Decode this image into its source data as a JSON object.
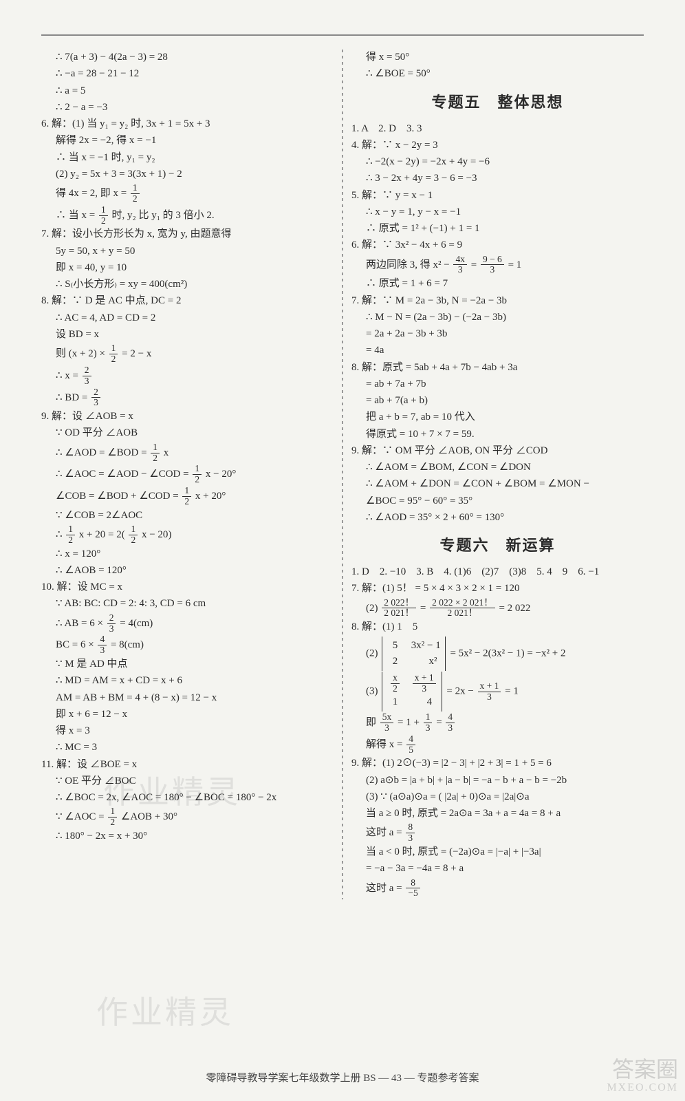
{
  "left": {
    "l1": "∴ 7(a + 3) − 4(2a − 3) = 28",
    "l2": "∴ −a = 28 − 21 − 12",
    "l3": "∴ a = 5",
    "l4": "∴ 2 − a = −3",
    "q6a": "6. 解：(1) 当 y₁ = y₂ 时, 3x + 1 = 5x + 3",
    "q6b": "解得 2x = −2, 得 x = −1",
    "q6c": "∴ 当 x = −1 时, y₁ = y₂",
    "q6d": "(2) y₂ = 5x + 3 = 3(3x + 1) − 2",
    "q6e_pre": "得 4x = 2, 即 x = ",
    "q6f_pre": "∴ 当 x = ",
    "q6f_post": " 时, y₂ 比 y₁ 的 3 倍小 2.",
    "q7a": "7. 解：设小长方形长为 x, 宽为 y, 由题意得",
    "q7b": "5y = 50, x + y = 50",
    "q7c": "即 x = 40, y = 10",
    "q7d": "∴ S₍小长方形₎ = xy = 400(cm²)",
    "q8a": "8. 解：∵ D 是 AC 中点, DC = 2",
    "q8b": "∴ AC = 4, AD = CD = 2",
    "q8c": "设 BD = x",
    "q8d_pre": "则 (x + 2) × ",
    "q8d_post": " = 2 − x",
    "q8e_pre": "∴ x = ",
    "q8f_pre": "∴ BD = ",
    "q9a": "9. 解：设 ∠AOB = x",
    "q9b": "∵ OD 平分 ∠AOB",
    "q9c_pre": "∴ ∠AOD = ∠BOD = ",
    "q9c_post": "x",
    "q9d_pre": "∴ ∠AOC = ∠AOD − ∠COD = ",
    "q9d_post": "x − 20°",
    "q9e_pre": "∠COB = ∠BOD + ∠COD = ",
    "q9e_post": "x + 20°",
    "q9f": "∵ ∠COB = 2∠AOC",
    "q9g_pre": "∴ ",
    "q9g_mid": "x + 20 = 2",
    "q9g_post": "x − 20",
    "q9h": "∴ x = 120°",
    "q9i": "∴ ∠AOB = 120°",
    "q10a": "10. 解：设 MC = x",
    "q10b": "∵ AB: BC: CD = 2: 4: 3, CD = 6 cm",
    "q10c_pre": "∴ AB = 6 × ",
    "q10c_post": " = 4(cm)",
    "q10d_pre": "BC = 6 × ",
    "q10d_post": " = 8(cm)",
    "q10e": "∵ M 是 AD 中点",
    "q10f": "∴ MD = AM = x + CD = x + 6",
    "q10g": "AM = AB + BM = 4 + (8 − x) = 12 − x",
    "q10h": "即 x + 6 = 12 − x",
    "q10i": "得 x = 3",
    "q10j": "∴ MC = 3",
    "q11a": "11. 解：设 ∠BOE = x",
    "q11b": "∵ OE 平分 ∠BOC",
    "q11c": "∴ ∠BOC = 2x, ∠AOC = 180° − ∠BOC = 180° − 2x",
    "q11d_pre": "∵ ∠AOC = ",
    "q11d_post": "∠AOB + 30°",
    "q11e": "∴ 180° − 2x = x + 30°"
  },
  "right": {
    "top1": "得 x = 50°",
    "top2": "∴ ∠BOE = 50°",
    "title5": "专题五　整体思想",
    "t5_1": "1. A　2. D　3. 3",
    "t5_4a": "4. 解：∵ x − 2y = 3",
    "t5_4b": "∴ −2(x − 2y) = −2x + 4y = −6",
    "t5_4c": "∴ 3 − 2x + 4y = 3 − 6 = −3",
    "t5_5a": "5. 解：∵ y = x − 1",
    "t5_5b": "∴ x − y = 1, y − x = −1",
    "t5_5c": "∴ 原式 = 1² + (−1) + 1 = 1",
    "t5_6a": "6. 解：∵ 3x² − 4x + 6 = 9",
    "t5_6b_pre": "两边同除 3, 得 x² − ",
    "t5_6b_mid": " = ",
    "t5_6b_post": " = 1",
    "t5_6c": "∴ 原式 = 1 + 6 = 7",
    "t5_7a": "7. 解：∵ M = 2a − 3b, N = −2a − 3b",
    "t5_7b": "∴ M − N = (2a − 3b) − (−2a − 3b)",
    "t5_7c": "= 2a + 2a − 3b + 3b",
    "t5_7d": "= 4a",
    "t5_8a": "8. 解：原式 = 5ab + 4a + 7b − 4ab + 3a",
    "t5_8b": "= ab + 7a + 7b",
    "t5_8c": "= ab + 7(a + b)",
    "t5_8d": "把 a + b = 7, ab = 10 代入",
    "t5_8e": "得原式 = 10 + 7 × 7 = 59.",
    "t5_9a": "9. 解：∵ OM 平分 ∠AOB, ON 平分 ∠COD",
    "t5_9b": "∴ ∠AOM = ∠BOM, ∠CON = ∠DON",
    "t5_9c": "∴ ∠AOM + ∠DON = ∠CON + ∠BOM = ∠MON −",
    "t5_9d": "∠BOC = 95° − 60° = 35°",
    "t5_9e": "∴ ∠AOD = 35° × 2 + 60° = 130°",
    "title6": "专题六　新运算",
    "t6_1": "1. D　2. −10　3. B　4. (1)6　(2)7　(3)8　5. 4　9　6. −1",
    "t6_7a": "7. 解：(1) 5！ = 5 × 4 × 3 × 2 × 1 = 120",
    "t6_7b_pre": "(2) ",
    "t6_7b_mid": " = ",
    "t6_7b_post": " = 2 022",
    "t6_8a": "8. 解：(1) 1　5",
    "t6_8b_pre": "(2) ",
    "t6_8b_post": " = 5x² − 2(3x² − 1) = −x² + 2",
    "t6_8c_pre": "(3) ",
    "t6_8c_mid": " = 2x − ",
    "t6_8c_post": " = 1",
    "t6_8d_pre": "即 ",
    "t6_8d_mid": " = 1 + ",
    "t6_8d_eq": " = ",
    "t6_8e_pre": "解得 x = ",
    "t6_9a": "9. 解：(1) 2⊙(−3) = |2 − 3| + |2 + 3| = 1 + 5 = 6",
    "t6_9b": "(2) a⊙b = |a + b| + |a − b| = −a − b + a − b = −2b",
    "t6_9c": "(3) ∵ (a⊙a)⊙a = ( |2a| + 0)⊙a = |2a|⊙a",
    "t6_9d": "当 a ≥ 0 时, 原式 = 2a⊙a = 3a + a = 4a = 8 + a",
    "t6_9e_pre": "这时 a = ",
    "t6_9f": "当 a < 0 时, 原式 = (−2a)⊙a = |−a| + |−3a|",
    "t6_9g": "= −a − 3a = −4a = 8 + a",
    "t6_9h_pre": "这时 a = "
  },
  "footer": "零障碍导教导学案七年级数学上册 BS — 43 — 专题参考答案",
  "watermarks": {
    "w2": "作业精灵",
    "w3": "作业精灵"
  },
  "corner": {
    "l1": "答案圈",
    "l2": "MXEO.COM"
  },
  "fracs": {
    "half_n": "1",
    "half_d": "2",
    "twothird_n": "2",
    "twothird_d": "3",
    "fourthird_n": "4",
    "fourthird_d": "3",
    "f4x3_n": "4x",
    "f4x3_d": "3",
    "f96_n": "9 − 6",
    "f96_d": "3",
    "f2022_n": "2 022！",
    "f2022_d": "2 021！",
    "f2022b_n": "2 022 × 2 021！",
    "f2022b_d": "2 021！",
    "fx1_n": "x + 1",
    "fx1_d": "3",
    "f5x3_n": "5x",
    "f5x3_d": "3",
    "f13_n": "1",
    "f13_d": "3",
    "f43_n": "4",
    "f43_d": "3",
    "f45_n": "4",
    "f45_d": "5",
    "f83_n": "8",
    "f83_d": "3",
    "f8n5_n": "8",
    "f8n5_d": "−5",
    "fx2_n": "x",
    "fx2_d": "2"
  },
  "det": {
    "d1_a": "5",
    "d1_b": "3x² − 1",
    "d1_c": "2",
    "d1_d": "x²",
    "d2_b": "",
    "d2_c": "1",
    "d2_d": "4"
  }
}
